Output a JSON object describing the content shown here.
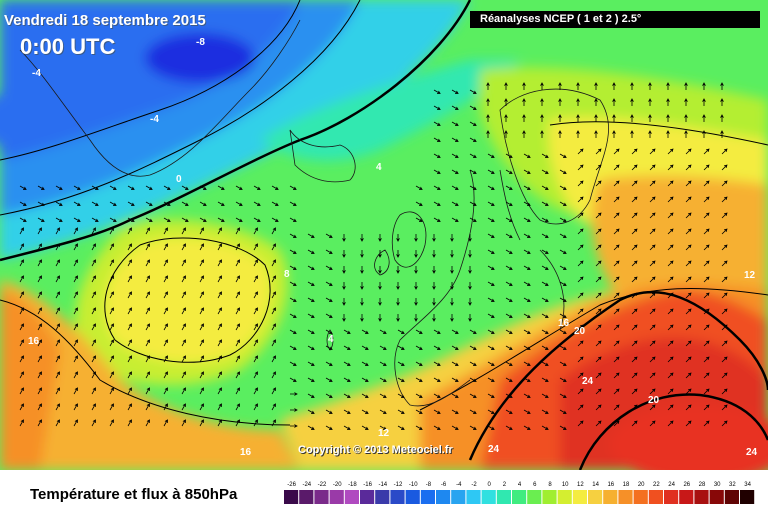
{
  "header": {
    "date": "Vendredi 18 septembre 2015",
    "time": "0:00 UTC",
    "source": "Réanalyses NCEP ( 1 et 2 ) 2.5°"
  },
  "footer": {
    "title": "Température et flux à 850hPa",
    "copyright": "Copyright © 2013 Meteociel.fr"
  },
  "isotherm_labels": [
    "-8",
    "-4",
    "-4",
    "0",
    "4",
    "8",
    "4",
    "12",
    "16",
    "16",
    "20",
    "24",
    "20",
    "24",
    "24",
    "12",
    "16"
  ],
  "legend": {
    "values": [
      "-26",
      "-24",
      "-22",
      "-20",
      "-18",
      "-16",
      "-14",
      "-12",
      "-10",
      "-8",
      "-6",
      "-4",
      "-2",
      "0",
      "2",
      "4",
      "6",
      "8",
      "10",
      "12",
      "14",
      "16",
      "18",
      "20",
      "22",
      "24",
      "26",
      "28",
      "30",
      "32",
      "34"
    ],
    "colors": [
      "#3a0a4a",
      "#5a1a6a",
      "#7a2a8a",
      "#9a3aa8",
      "#b04ac0",
      "#5a2a9a",
      "#3a3aaa",
      "#2a4ac8",
      "#1a5ae0",
      "#1a6ef0",
      "#1e88f0",
      "#28a4f0",
      "#2ec8f4",
      "#30e0e0",
      "#30e8b0",
      "#40ec80",
      "#6aee50",
      "#a0ee30",
      "#d4ee30",
      "#f4ec40",
      "#f6d040",
      "#f6b030",
      "#f69028",
      "#f47020",
      "#f05020",
      "#e03020",
      "#c81818",
      "#a81010",
      "#880808",
      "#600404",
      "#200000"
    ]
  },
  "colors": {
    "cold_deep": "#1a2ee0",
    "cold": "#2a6ef0",
    "cool": "#30c8f0",
    "mild": "#30e8a0",
    "neutral": "#6aee50",
    "warm": "#f4ec40",
    "hot": "#f69028",
    "very_hot": "#e83020"
  }
}
